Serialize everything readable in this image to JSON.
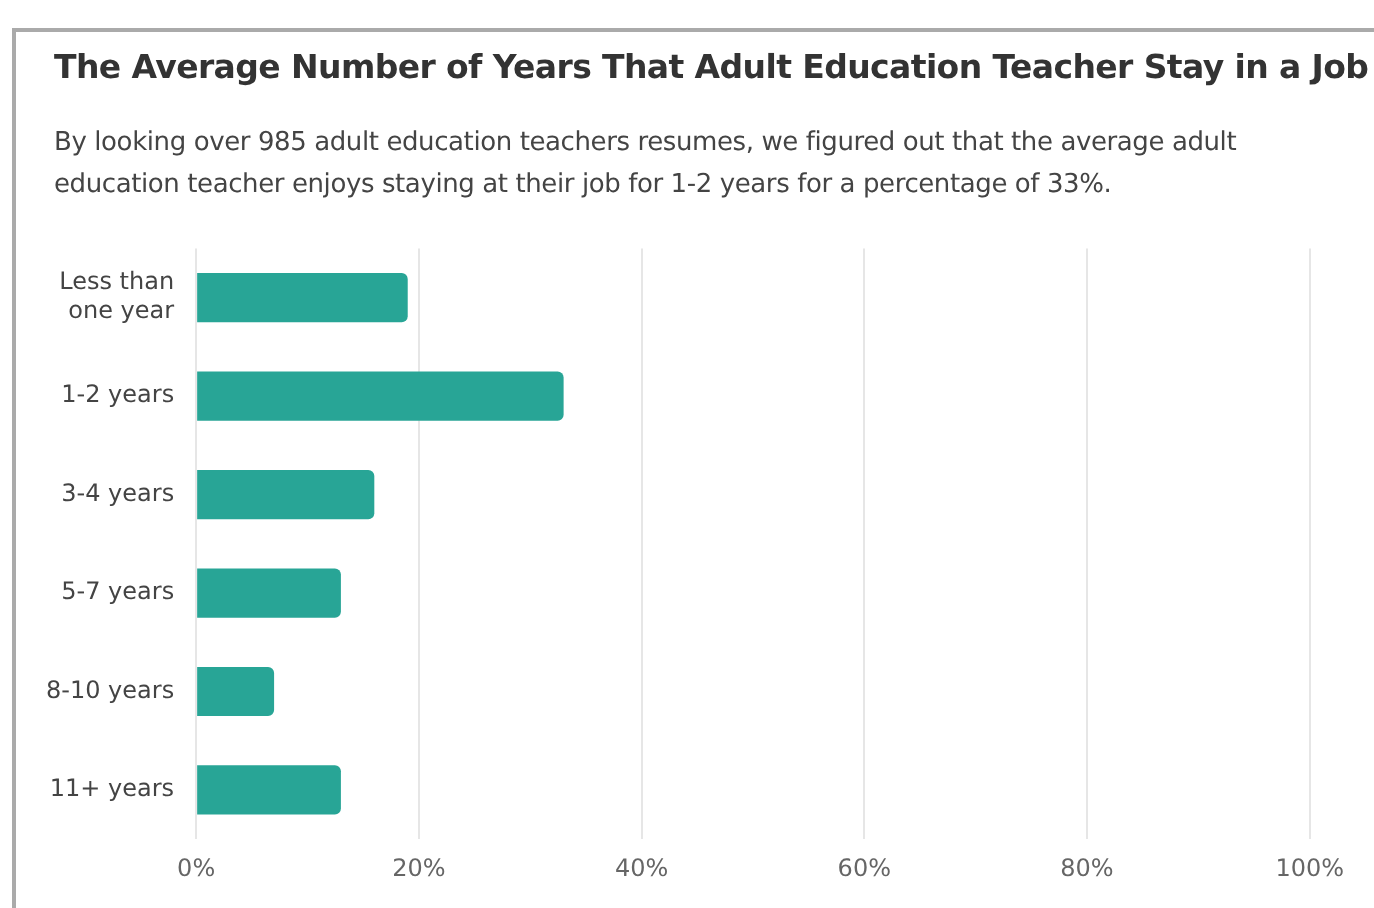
{
  "chart_data": {
    "type": "bar",
    "orientation": "horizontal",
    "title": "The Average Number of Years That Adult Education Teacher Stay in a Job",
    "subtitle": "By looking over 985 adult education teachers resumes, we figured out that the average adult education teacher enjoys staying at their job for 1-2 years for a percentage of 33%.",
    "categories": [
      "Less than one year",
      "1-2 years",
      "3-4 years",
      "5-7 years",
      "8-10 years",
      "11+ years"
    ],
    "values": [
      19,
      33,
      16,
      13,
      7,
      13
    ],
    "color": "#28a596",
    "xlim": [
      0,
      100
    ],
    "xticks": [
      {
        "value": 0,
        "label": "0%"
      },
      {
        "value": 20,
        "label": "20%"
      },
      {
        "value": 40,
        "label": "40%"
      },
      {
        "value": 60,
        "label": "60%"
      },
      {
        "value": 80,
        "label": "80%"
      },
      {
        "value": 100,
        "label": "100%"
      }
    ],
    "grid": "x",
    "legend": false
  }
}
